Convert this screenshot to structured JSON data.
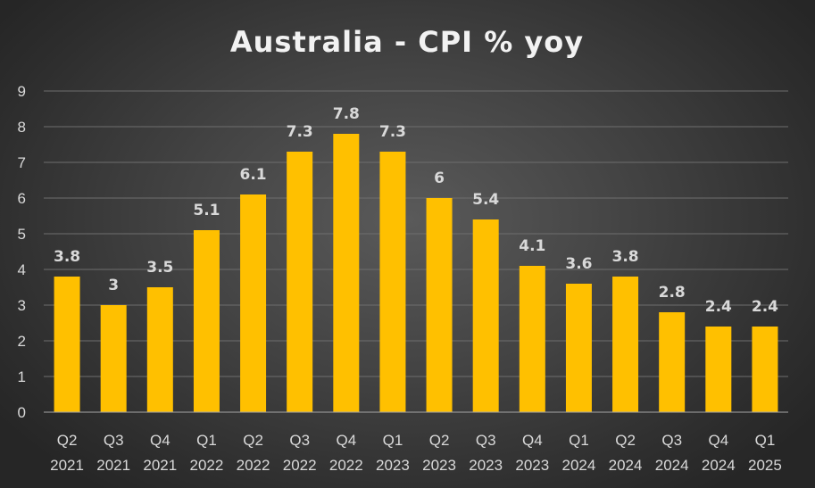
{
  "chart_data": {
    "type": "bar",
    "title": "Australia - CPI % yoy",
    "categories": [
      [
        "Q2",
        "2021"
      ],
      [
        "Q3",
        "2021"
      ],
      [
        "Q4",
        "2021"
      ],
      [
        "Q1",
        "2022"
      ],
      [
        "Q2",
        "2022"
      ],
      [
        "Q3",
        "2022"
      ],
      [
        "Q4",
        "2022"
      ],
      [
        "Q1",
        "2023"
      ],
      [
        "Q2",
        "2023"
      ],
      [
        "Q3",
        "2023"
      ],
      [
        "Q4",
        "2023"
      ],
      [
        "Q1",
        "2024"
      ],
      [
        "Q2",
        "2024"
      ],
      [
        "Q3",
        "2024"
      ],
      [
        "Q4",
        "2024"
      ],
      [
        "Q1",
        "2025"
      ]
    ],
    "values": [
      3.8,
      3,
      3.5,
      5.1,
      6.1,
      7.3,
      7.8,
      7.3,
      6,
      5.4,
      4.1,
      3.6,
      3.8,
      2.8,
      2.4,
      2.4
    ],
    "data_labels": [
      "3.8",
      "3",
      "3.5",
      "5.1",
      "6.1",
      "7.3",
      "7.8",
      "7.3",
      "6",
      "5.4",
      "4.1",
      "3.6",
      "3.8",
      "2.8",
      "2.4",
      "2.4"
    ],
    "y_ticks": [
      "0",
      "1",
      "2",
      "3",
      "4",
      "5",
      "6",
      "7",
      "8",
      "9"
    ],
    "ylim": [
      0,
      9
    ],
    "xlabel": "",
    "ylabel": "",
    "grid": true,
    "legend": "none",
    "colors": {
      "bar": "#FFC000",
      "text": "#D9D9D9",
      "title": "#F2F2F2",
      "gridline": "#6E6E6E",
      "background": "#404040"
    }
  }
}
